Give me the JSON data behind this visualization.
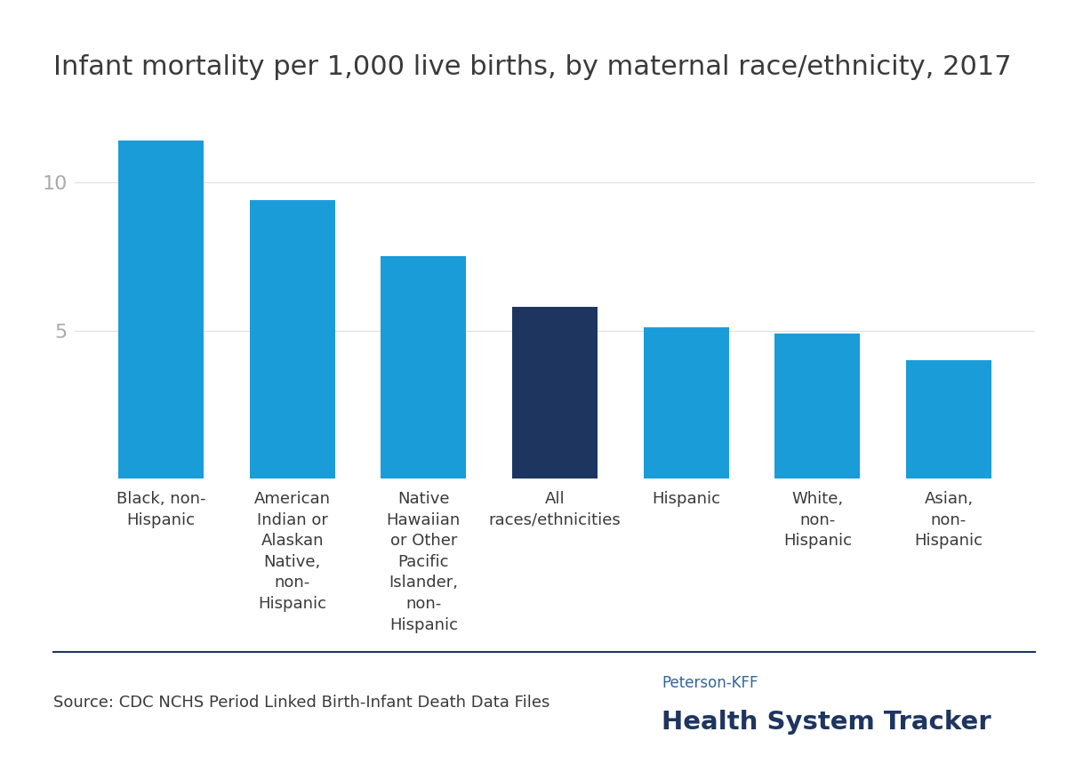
{
  "title": "Infant mortality per 1,000 live births, by maternal race/ethnicity, 2017",
  "categories": [
    "Black, non-\nHispanic",
    "American\nIndian or\nAlaskan\nNative,\nnon-\nHispanic",
    "Native\nHawaiian\nor Other\nPacific\nIslander,\nnon-\nHispanic",
    "All\nraces/ethnicities",
    "Hispanic",
    "White,\nnon-\nHispanic",
    "Asian,\nnon-\nHispanic"
  ],
  "values": [
    11.4,
    9.4,
    7.5,
    5.8,
    5.1,
    4.9,
    4.0
  ],
  "bar_colors": [
    "#1a9cd8",
    "#1a9cd8",
    "#1a9cd8",
    "#1e3560",
    "#1a9cd8",
    "#1a9cd8",
    "#1a9cd8"
  ],
  "yticks": [
    5,
    10
  ],
  "ylim": [
    0,
    12.5
  ],
  "background_color": "#ffffff",
  "title_color": "#3a3a3a",
  "title_fontsize": 22,
  "ytick_color": "#aaaaaa",
  "source_text": "Source: CDC NCHS Period Linked Birth-Infant Death Data Files",
  "source_fontsize": 13,
  "peterson_text": "Peterson-KFF",
  "tracker_text": "Health System Tracker",
  "peterson_color": "#336699",
  "tracker_color": "#1e3560",
  "separator_color": "#1e3560",
  "tick_label_color": "#3a3a3a",
  "tick_label_fontsize": 13,
  "bar_label_fontsize": 13
}
